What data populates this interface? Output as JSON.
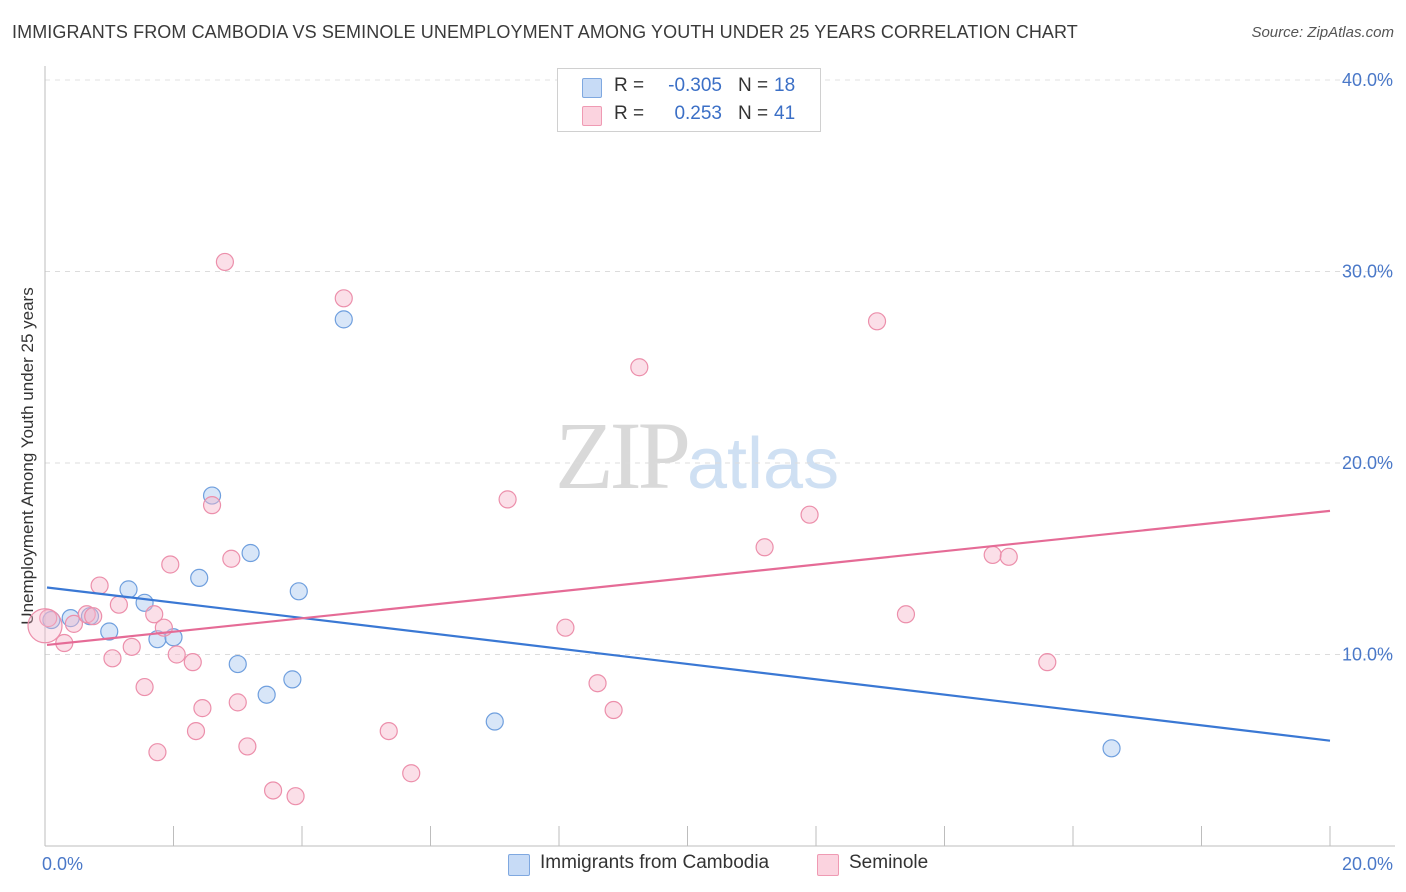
{
  "title": "IMMIGRANTS FROM CAMBODIA VS SEMINOLE UNEMPLOYMENT AMONG YOUTH UNDER 25 YEARS CORRELATION CHART",
  "source": "Source: ZipAtlas.com",
  "watermark": {
    "zip": "ZIP",
    "atlas": "atlas"
  },
  "stats": [
    {
      "r_label": "R =",
      "r_value": "-0.305",
      "n_label": "N =",
      "n_value": "18",
      "color": "#a9c8f0"
    },
    {
      "r_label": "R =",
      "r_value": "0.253",
      "n_label": "N =",
      "n_value": "41",
      "color": "#f6b8cb"
    }
  ],
  "legend": [
    {
      "label": "Immigrants from Cambodia",
      "color": "#a9c8f0"
    },
    {
      "label": "Seminole",
      "color": "#f6b8cb"
    }
  ],
  "chart_data": {
    "type": "scatter",
    "title": "IMMIGRANTS FROM CAMBODIA VS SEMINOLE UNEMPLOYMENT AMONG YOUTH UNDER 25 YEARS CORRELATION CHART",
    "xlabel": "",
    "ylabel": "Unemployment Among Youth under 25 years",
    "xlim": [
      0,
      20
    ],
    "ylim": [
      0,
      40
    ],
    "x_tick_labels": [
      {
        "value": 0,
        "label": "0.0%"
      },
      {
        "value": 20,
        "label": "20.0%"
      }
    ],
    "y_tick_labels": [
      {
        "value": 10,
        "label": "10.0%"
      },
      {
        "value": 20,
        "label": "20.0%"
      },
      {
        "value": 30,
        "label": "30.0%"
      },
      {
        "value": 40,
        "label": "40.0%"
      }
    ],
    "grid": true,
    "series": [
      {
        "name": "Immigrants from Cambodia",
        "color": "#a9c8f0",
        "stroke": "#6f9fde",
        "trend": {
          "x": [
            0,
            20
          ],
          "y": [
            13.5,
            5.5
          ],
          "color": "#3a78d4"
        },
        "points": [
          [
            0.1,
            11.8
          ],
          [
            0.4,
            11.9
          ],
          [
            0.7,
            12.0
          ],
          [
            1.0,
            11.2
          ],
          [
            1.3,
            13.4
          ],
          [
            1.55,
            12.7
          ],
          [
            1.75,
            10.8
          ],
          [
            2.0,
            10.9
          ],
          [
            2.4,
            14.0
          ],
          [
            2.6,
            18.3
          ],
          [
            3.0,
            9.5
          ],
          [
            3.2,
            15.3
          ],
          [
            3.45,
            7.9
          ],
          [
            3.85,
            8.7
          ],
          [
            3.95,
            13.3
          ],
          [
            4.65,
            27.5
          ],
          [
            7.0,
            6.5
          ],
          [
            16.6,
            5.1
          ]
        ]
      },
      {
        "name": "Seminole",
        "color": "#f6b8cb",
        "stroke": "#ec8fab",
        "trend": {
          "x": [
            0,
            20
          ],
          "y": [
            10.5,
            17.5
          ],
          "color": "#e56b96"
        },
        "points": [
          [
            0.05,
            11.9
          ],
          [
            0.3,
            10.6
          ],
          [
            0.45,
            11.6
          ],
          [
            0.65,
            12.1
          ],
          [
            0.75,
            12.0
          ],
          [
            0.85,
            13.6
          ],
          [
            1.05,
            9.8
          ],
          [
            1.15,
            12.6
          ],
          [
            1.35,
            10.4
          ],
          [
            1.55,
            8.3
          ],
          [
            1.7,
            12.1
          ],
          [
            1.75,
            4.9
          ],
          [
            1.85,
            11.4
          ],
          [
            1.95,
            14.7
          ],
          [
            2.05,
            10.0
          ],
          [
            2.3,
            9.6
          ],
          [
            2.35,
            6.0
          ],
          [
            2.45,
            7.2
          ],
          [
            2.6,
            17.8
          ],
          [
            2.8,
            30.5
          ],
          [
            2.9,
            15.0
          ],
          [
            3.0,
            7.5
          ],
          [
            3.15,
            5.2
          ],
          [
            3.55,
            2.9
          ],
          [
            3.9,
            2.6
          ],
          [
            4.65,
            28.6
          ],
          [
            5.35,
            6.0
          ],
          [
            5.7,
            3.8
          ],
          [
            7.2,
            18.1
          ],
          [
            8.1,
            11.4
          ],
          [
            8.6,
            8.5
          ],
          [
            8.85,
            7.1
          ],
          [
            9.25,
            25.0
          ],
          [
            11.2,
            15.6
          ],
          [
            11.9,
            17.3
          ],
          [
            12.95,
            27.4
          ],
          [
            13.4,
            12.1
          ],
          [
            14.75,
            15.2
          ],
          [
            15.0,
            15.1
          ],
          [
            15.6,
            9.6
          ],
          [
            0.0,
            11.5
          ]
        ]
      }
    ]
  }
}
